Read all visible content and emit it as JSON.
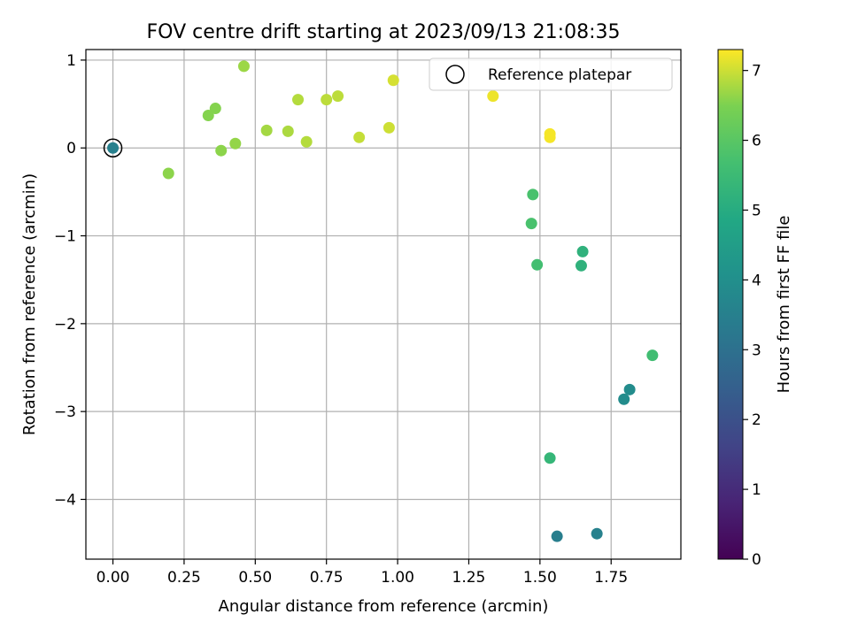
{
  "chart_data": {
    "type": "scatter",
    "title": "FOV centre drift starting at 2023/09/13 21:08:35",
    "xlabel": "Angular distance from reference (arcmin)",
    "ylabel": "Rotation from reference (arcmin)",
    "xlim": [
      -0.095,
      1.995
    ],
    "ylim": [
      -4.68,
      1.12
    ],
    "xticks": [
      0.0,
      0.25,
      0.5,
      0.75,
      1.0,
      1.25,
      1.5,
      1.75
    ],
    "xtick_labels": [
      "0.00",
      "0.25",
      "0.50",
      "0.75",
      "1.00",
      "1.25",
      "1.50",
      "1.75"
    ],
    "yticks": [
      1,
      0,
      -1,
      -2,
      -3,
      -4
    ],
    "ytick_labels": [
      "1",
      "0",
      "−1",
      "−2",
      "−3",
      "−4"
    ],
    "grid": true,
    "legend": {
      "placement": "top-right",
      "entries": [
        "Reference platepar"
      ]
    },
    "colorbar": {
      "label": "Hours from first FF file",
      "range": [
        0,
        7.3
      ],
      "ticks": [
        0,
        1,
        2,
        3,
        4,
        5,
        6,
        7
      ],
      "tick_labels": [
        "0",
        "1",
        "2",
        "3",
        "4",
        "5",
        "6",
        "7"
      ],
      "colormap": "viridis"
    },
    "reference_point": {
      "x": 0.0,
      "y": 0.0
    },
    "points": [
      {
        "x": 0.0,
        "y": 0.0,
        "c": 3.5
      },
      {
        "x": 0.195,
        "y": -0.29,
        "c": 6.6
      },
      {
        "x": 0.335,
        "y": 0.37,
        "c": 6.55
      },
      {
        "x": 0.36,
        "y": 0.45,
        "c": 6.55
      },
      {
        "x": 0.38,
        "y": -0.03,
        "c": 6.6
      },
      {
        "x": 0.43,
        "y": 0.05,
        "c": 6.65
      },
      {
        "x": 0.46,
        "y": 0.93,
        "c": 6.7
      },
      {
        "x": 0.54,
        "y": 0.2,
        "c": 6.75
      },
      {
        "x": 0.615,
        "y": 0.19,
        "c": 6.8
      },
      {
        "x": 0.65,
        "y": 0.55,
        "c": 6.85
      },
      {
        "x": 0.68,
        "y": 0.07,
        "c": 6.85
      },
      {
        "x": 0.75,
        "y": 0.55,
        "c": 6.9
      },
      {
        "x": 0.79,
        "y": 0.59,
        "c": 6.9
      },
      {
        "x": 0.865,
        "y": 0.12,
        "c": 6.95
      },
      {
        "x": 0.97,
        "y": 0.23,
        "c": 7.0
      },
      {
        "x": 0.985,
        "y": 0.77,
        "c": 7.05
      },
      {
        "x": 1.335,
        "y": 0.59,
        "c": 7.2
      },
      {
        "x": 1.535,
        "y": 0.16,
        "c": 7.25
      },
      {
        "x": 1.535,
        "y": 0.12,
        "c": 7.25
      },
      {
        "x": 1.475,
        "y": -0.53,
        "c": 5.75
      },
      {
        "x": 1.47,
        "y": -0.86,
        "c": 5.75
      },
      {
        "x": 1.49,
        "y": -1.33,
        "c": 5.65
      },
      {
        "x": 1.645,
        "y": -1.34,
        "c": 5.2
      },
      {
        "x": 1.65,
        "y": -1.18,
        "c": 5.2
      },
      {
        "x": 1.895,
        "y": -2.36,
        "c": 5.6
      },
      {
        "x": 1.815,
        "y": -2.75,
        "c": 3.9
      },
      {
        "x": 1.795,
        "y": -2.86,
        "c": 3.9
      },
      {
        "x": 1.535,
        "y": -3.53,
        "c": 5.35
      },
      {
        "x": 1.56,
        "y": -4.42,
        "c": 3.45
      },
      {
        "x": 1.7,
        "y": -4.39,
        "c": 3.55
      }
    ]
  }
}
